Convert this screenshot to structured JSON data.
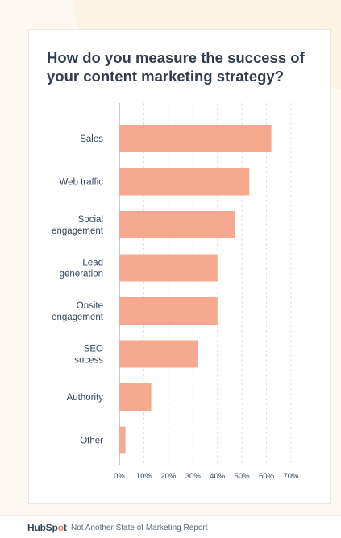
{
  "chart_data": {
    "type": "bar",
    "orientation": "horizontal",
    "title": "How do you measure the success of your content marketing strategy?",
    "categories": [
      "Sales",
      "Web traffic",
      "Social engagement",
      "Lead generation",
      "Onsite engagement",
      "SEO sucess",
      "Authority",
      "Other"
    ],
    "category_lines": [
      [
        "Sales"
      ],
      [
        "Web traffic"
      ],
      [
        "Social",
        "engagement"
      ],
      [
        "Lead",
        "generation"
      ],
      [
        "Onsite",
        "engagement"
      ],
      [
        "SEO",
        "sucess"
      ],
      [
        "Authority"
      ],
      [
        "Other"
      ]
    ],
    "values": [
      62,
      53,
      47,
      40,
      40,
      32,
      13,
      2.5
    ],
    "xlim": [
      0,
      70
    ],
    "xticks": [
      "0%",
      "10%",
      "20%",
      "30%",
      "40%",
      "50%",
      "60%",
      "70%"
    ],
    "grid": true,
    "bar_color": "#f7a98f"
  },
  "footer": {
    "brand_main": "HubSp",
    "brand_dot": "o",
    "brand_end": "t",
    "source": "Not Another State of Marketing Report"
  }
}
